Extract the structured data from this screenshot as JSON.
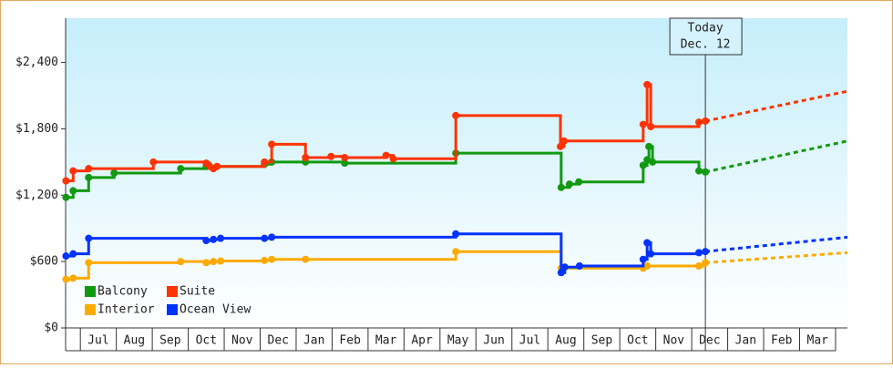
{
  "chart_data": {
    "type": "step-line",
    "xlim": [
      -0.41,
      21.33
    ],
    "xticks": [
      {
        "value": 0.5,
        "label": "Jul"
      },
      {
        "value": 1.5,
        "label": "Aug"
      },
      {
        "value": 2.5,
        "label": "Sep"
      },
      {
        "value": 3.5,
        "label": "Oct"
      },
      {
        "value": 4.5,
        "label": "Nov"
      },
      {
        "value": 5.5,
        "label": "Dec"
      },
      {
        "value": 6.5,
        "label": "Jan"
      },
      {
        "value": 7.5,
        "label": "Feb"
      },
      {
        "value": 8.5,
        "label": "Mar"
      },
      {
        "value": 9.5,
        "label": "Apr"
      },
      {
        "value": 10.5,
        "label": "May"
      },
      {
        "value": 11.5,
        "label": "Jun"
      },
      {
        "value": 12.5,
        "label": "Jul"
      },
      {
        "value": 13.5,
        "label": "Aug"
      },
      {
        "value": 14.5,
        "label": "Sep"
      },
      {
        "value": 15.5,
        "label": "Oct"
      },
      {
        "value": 16.5,
        "label": "Nov"
      },
      {
        "value": 17.5,
        "label": "Dec"
      },
      {
        "value": 18.5,
        "label": "Jan"
      },
      {
        "value": 19.5,
        "label": "Feb"
      },
      {
        "value": 20.5,
        "label": "Mar"
      }
    ],
    "ylim": [
      0,
      2800
    ],
    "yticks": [
      {
        "value": 0,
        "label": "$0"
      },
      {
        "value": 600,
        "label": "$600"
      },
      {
        "value": 1200,
        "label": "$1,200"
      },
      {
        "value": 1800,
        "label": "$1,800"
      },
      {
        "value": 2400,
        "label": "$2,400"
      }
    ],
    "today": {
      "x": 17.38,
      "lines": [
        "Today",
        "Dec. 12"
      ]
    },
    "legend": "lower left",
    "series": [
      {
        "name": "Balcony",
        "color": "#119911",
        "x": [
          -0.4,
          -0.2,
          0.23,
          0.94,
          2.79,
          3.5,
          5.12,
          5.32,
          6.26,
          7.35,
          10.44,
          13.37,
          13.6,
          13.86,
          15.65,
          15.76,
          15.81,
          15.91,
          17.2,
          17.38,
          21.33
        ],
        "values": [
          1180,
          1240,
          1360,
          1400,
          1440,
          1460,
          1480,
          1500,
          1500,
          1490,
          1580,
          1270,
          1300,
          1320,
          1470,
          1520,
          1640,
          1500,
          1420,
          1410,
          1690
        ]
      },
      {
        "name": "Suite",
        "color": "#ff3300",
        "x": [
          -0.4,
          -0.2,
          0.23,
          2.03,
          3.5,
          3.6,
          3.7,
          3.8,
          5.12,
          5.32,
          6.26,
          6.97,
          7.35,
          8.5,
          8.7,
          10.44,
          13.35,
          13.45,
          15.65,
          15.76,
          15.86,
          17.2,
          17.38,
          21.33
        ],
        "values": [
          1330,
          1420,
          1440,
          1500,
          1490,
          1460,
          1440,
          1460,
          1500,
          1660,
          1540,
          1550,
          1540,
          1560,
          1530,
          1920,
          1640,
          1690,
          1840,
          2200,
          1820,
          1860,
          1870,
          2140
        ]
      },
      {
        "name": "Interior",
        "color": "#ffaa00",
        "x": [
          -0.4,
          -0.2,
          0.23,
          2.79,
          3.5,
          3.7,
          3.9,
          5.12,
          5.32,
          6.26,
          10.44,
          13.37,
          15.65,
          15.76,
          17.2,
          17.38,
          21.33
        ],
        "values": [
          440,
          450,
          590,
          600,
          590,
          600,
          605,
          610,
          620,
          620,
          690,
          540,
          540,
          560,
          560,
          590,
          680
        ]
      },
      {
        "name": "Ocean View",
        "color": "#0033ff",
        "x": [
          -0.4,
          -0.2,
          0.23,
          3.5,
          3.7,
          3.9,
          5.12,
          5.32,
          10.44,
          13.37,
          13.47,
          13.88,
          15.65,
          15.76,
          15.86,
          17.2,
          17.38,
          21.33
        ],
        "values": [
          650,
          670,
          810,
          790,
          800,
          810,
          810,
          820,
          850,
          500,
          550,
          560,
          620,
          770,
          670,
          680,
          690,
          820
        ]
      }
    ]
  }
}
